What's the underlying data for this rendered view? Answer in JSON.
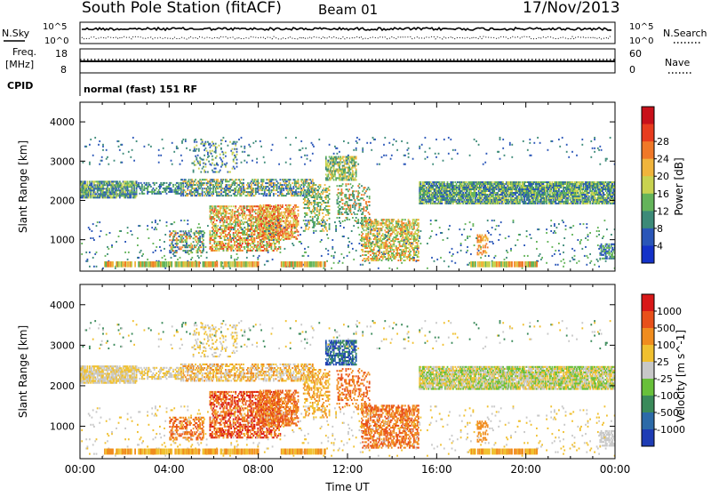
{
  "header": {
    "title": "South Pole Station (fitACF)",
    "beam": "Beam 01",
    "date": "17/Nov/2013"
  },
  "status_panels": {
    "nsky_label": "N.Sky",
    "nsky_ticks": [
      "10^5",
      "10^0"
    ],
    "freq_label": "Freq.",
    "freq_unit": "[MHz]",
    "freq_ticks": [
      "18",
      "8"
    ],
    "cpid_label": "CPID",
    "cpid_text": "normal (fast) 151 RF",
    "nsearch_label": "N.Search",
    "nsearch_ticks": [
      "10^5",
      "10^0"
    ],
    "nave_label": "Nave",
    "nave_ticks": [
      "60",
      "0"
    ]
  },
  "chart_data": [
    {
      "type": "heatmap",
      "name": "power",
      "ylabel": "Slant Range [km]",
      "ylim": [
        200,
        4500
      ],
      "yticks": [
        "1000",
        "2000",
        "3000",
        "4000"
      ],
      "ytick_values": [
        1000,
        2000,
        3000,
        4000
      ],
      "xlim": [
        0,
        24
      ],
      "colorbar_label": "Power [dB]",
      "colorbar_ticks": [
        "4",
        "8",
        "12",
        "16",
        "20",
        "24",
        "28"
      ],
      "colorbar_colors": [
        "#1432c8",
        "#2a56b8",
        "#3c8a78",
        "#64b45a",
        "#c8d250",
        "#f0b43c",
        "#f07828",
        "#e83c1e",
        "#c8101a"
      ]
    },
    {
      "type": "heatmap",
      "name": "velocity",
      "ylabel": "Slant Range [km]",
      "ylim": [
        200,
        4500
      ],
      "yticks": [
        "1000",
        "2000",
        "3000",
        "4000"
      ],
      "ytick_values": [
        1000,
        2000,
        3000,
        4000
      ],
      "xlim": [
        0,
        24
      ],
      "xlabel": "Time UT",
      "xticks": [
        "00:00",
        "04:00",
        "08:00",
        "12:00",
        "16:00",
        "20:00",
        "00:00"
      ],
      "colorbar_label": "Velocity [m s^-1]",
      "colorbar_ticks": [
        "1000",
        "500",
        "100",
        "25",
        "-25",
        "-100",
        "-500",
        "-1000"
      ],
      "colorbar_colors": [
        "#1e3cb4",
        "#2c6aa8",
        "#3a8a5a",
        "#68c03a",
        "#c8c8c8",
        "#f0c030",
        "#f08c1e",
        "#e8501a",
        "#d81818"
      ]
    }
  ]
}
